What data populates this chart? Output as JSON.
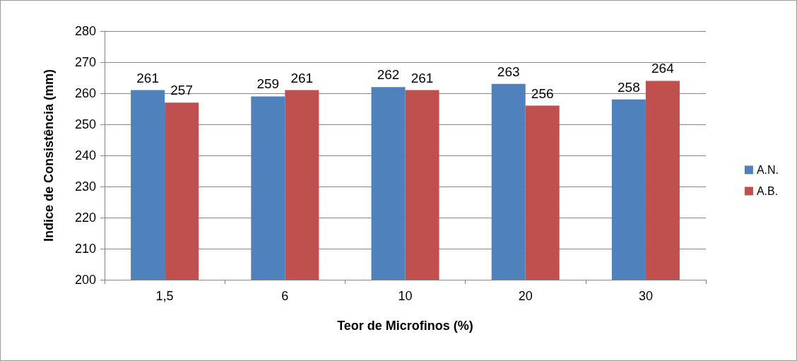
{
  "chart_data": {
    "type": "bar",
    "xlabel": "Teor de Microfinos (%)",
    "ylabel": "Indice de Consistência (mm)",
    "categories": [
      "1,5",
      "6",
      "10",
      "20",
      "30"
    ],
    "series": [
      {
        "name": "A.N.",
        "color": "#4f81bd",
        "values": [
          261,
          259,
          262,
          263,
          258
        ]
      },
      {
        "name": "A.B.",
        "color": "#c0504d",
        "values": [
          257,
          261,
          261,
          256,
          264
        ]
      }
    ],
    "ylim": [
      200,
      280
    ],
    "yticks": [
      200,
      210,
      220,
      230,
      240,
      250,
      260,
      270,
      280
    ],
    "grid": "y",
    "legend": "right",
    "data_labels": true
  }
}
